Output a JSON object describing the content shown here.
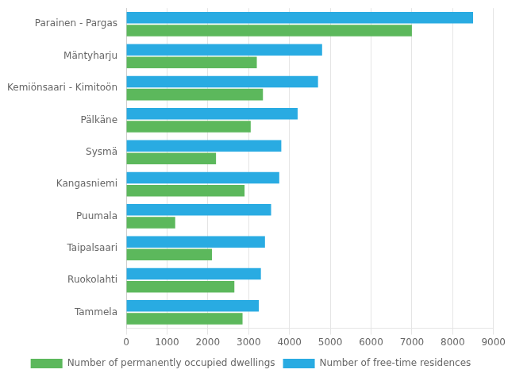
{
  "chart_data": {
    "type": "bar",
    "orientation": "horizontal",
    "categories": [
      "Parainen - Pargas",
      "Mäntyharju",
      "Kemiönsaari - Kimitoön",
      "Pälkäne",
      "Sysmä",
      "Kangasniemi",
      "Puumala",
      "Taipalsaari",
      "Ruokolahti",
      "Tammela"
    ],
    "series": [
      {
        "name": "Number of free-time residences",
        "color": "#29ABE2",
        "values": [
          8500,
          4800,
          4700,
          4200,
          3800,
          3750,
          3550,
          3400,
          3300,
          3250
        ]
      },
      {
        "name": "Number of permanently occupied dwellings",
        "color": "#5CB85C",
        "values": [
          7000,
          3200,
          3350,
          3050,
          2200,
          2900,
          1200,
          2100,
          2650,
          2850
        ]
      }
    ],
    "xlim": [
      0,
      9000
    ],
    "xticks": [
      0,
      1000,
      2000,
      3000,
      4000,
      5000,
      6000,
      7000,
      8000,
      9000
    ],
    "grid": true,
    "legend": "bottom"
  }
}
